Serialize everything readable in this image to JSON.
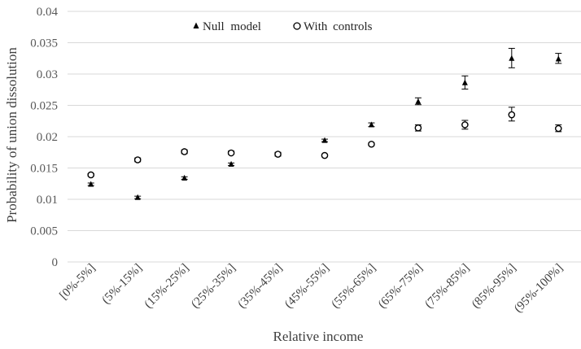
{
  "chart_data": {
    "type": "scatter",
    "title": "",
    "xlabel": "Relative income",
    "ylabel": "Probability of union dissolution",
    "categories": [
      "[0%-5%]",
      "(5%-15%]",
      "(15%-25%]",
      "(25%-35%]",
      "(35%-45%]",
      "(45%-55%]",
      "(55%-65%]",
      "(65%-75%]",
      "(75%-85%]",
      "(85%-95%]",
      "(95%-100%]"
    ],
    "ylim": [
      0,
      0.04
    ],
    "yticks": [
      "0",
      "0.005",
      "0.01",
      "0.015",
      "0.02",
      "0.025",
      "0.03",
      "0.035",
      "0.04"
    ],
    "grid": "horizontal",
    "legend_position": "top",
    "series": [
      {
        "name": "Null model",
        "marker": "triangle",
        "color": "#000000",
        "values": [
          0.0124,
          0.0103,
          0.0134,
          0.0156,
          0.0172,
          0.0194,
          0.0219,
          0.0256,
          0.0286,
          0.0325,
          0.0324
        ],
        "error_low": [
          0.0122,
          0.0101,
          0.0132,
          0.0154,
          0.0169,
          0.0192,
          0.0216,
          0.0251,
          0.0276,
          0.031,
          0.0317
        ],
        "error_high": [
          0.0126,
          0.0105,
          0.0136,
          0.0158,
          0.0175,
          0.0196,
          0.0222,
          0.0262,
          0.0297,
          0.0341,
          0.0333
        ]
      },
      {
        "name": "With controls",
        "marker": "circle-open",
        "color": "#000000",
        "values": [
          0.0139,
          0.0163,
          0.0176,
          0.0174,
          0.0172,
          0.017,
          0.0188,
          0.0214,
          0.0219,
          0.0235,
          0.0213
        ],
        "error_low": [
          0.0137,
          0.016,
          0.0173,
          0.0172,
          0.017,
          0.0169,
          0.0186,
          0.0209,
          0.0212,
          0.0225,
          0.0208
        ],
        "error_high": [
          0.0141,
          0.0166,
          0.0179,
          0.0177,
          0.0174,
          0.0171,
          0.019,
          0.0219,
          0.0226,
          0.0247,
          0.0219
        ]
      }
    ]
  }
}
